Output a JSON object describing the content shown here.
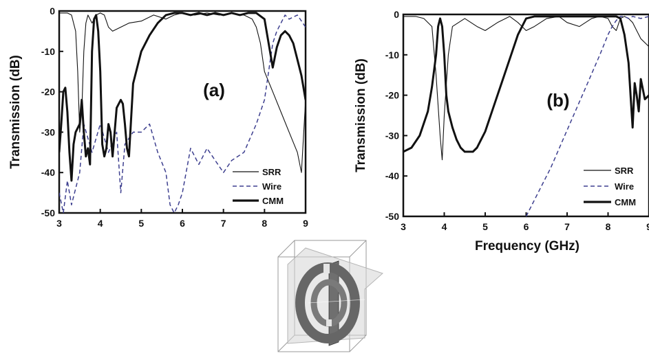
{
  "chart_data": [
    {
      "type": "line",
      "panel_label": "(a)",
      "xlabel": "",
      "ylabel": "Transmission (dB)",
      "xlim": [
        3,
        9
      ],
      "ylim": [
        -50,
        0
      ],
      "xticks": [
        "3",
        "4",
        "5",
        "6",
        "7",
        "8",
        "9"
      ],
      "yticks": [
        "0",
        "-10",
        "-20",
        "-30",
        "-40",
        "-50"
      ],
      "legend_position": "bottom-right",
      "series": [
        {
          "name": "SRR",
          "style": "thin-solid",
          "color": "#111111",
          "x": [
            3.0,
            3.2,
            3.3,
            3.4,
            3.45,
            3.5,
            3.55,
            3.6,
            3.65,
            3.7,
            3.8,
            3.9,
            4.0,
            4.1,
            4.2,
            4.3,
            4.5,
            4.7,
            5.0,
            5.3,
            5.6,
            5.8,
            6.0,
            6.3,
            6.6,
            6.9,
            7.2,
            7.5,
            7.7,
            7.8,
            7.9,
            8.0,
            8.2,
            8.4,
            8.6,
            8.8,
            8.9,
            9.0
          ],
          "y": [
            -0.5,
            -0.5,
            -1,
            -5,
            -15,
            -30,
            -25,
            -10,
            -3,
            -1,
            -3,
            -1,
            -0.5,
            -1,
            -4,
            -5,
            -4,
            -3,
            -2.5,
            -1,
            -2,
            -1,
            -0.5,
            -1,
            -0.5,
            -1,
            -0.5,
            -1,
            -2,
            -4,
            -8,
            -15,
            -20,
            -25,
            -30,
            -35,
            -40,
            -22
          ]
        },
        {
          "name": "Wire",
          "style": "dashed",
          "color": "#3d3f8f",
          "x": [
            3.0,
            3.1,
            3.2,
            3.3,
            3.5,
            3.6,
            3.8,
            4.0,
            4.2,
            4.4,
            4.5,
            4.6,
            4.8,
            5.0,
            5.2,
            5.4,
            5.6,
            5.7,
            5.8,
            5.9,
            6.0,
            6.2,
            6.4,
            6.6,
            6.8,
            7.0,
            7.2,
            7.5,
            7.8,
            8.0,
            8.1,
            8.2,
            8.3,
            8.4,
            8.5,
            8.6,
            8.8,
            9.0
          ],
          "y": [
            -45,
            -50,
            -42,
            -48,
            -40,
            -28,
            -35,
            -28,
            -35,
            -30,
            -45,
            -33,
            -30,
            -30,
            -28,
            -35,
            -40,
            -48,
            -50,
            -48,
            -45,
            -34,
            -38,
            -34,
            -37,
            -40,
            -37,
            -35,
            -28,
            -22,
            -15,
            -8,
            -5,
            -3,
            -1,
            -2,
            -1,
            -4
          ]
        },
        {
          "name": "CMM",
          "style": "thick-solid",
          "color": "#111111",
          "x": [
            3.0,
            3.05,
            3.1,
            3.15,
            3.2,
            3.25,
            3.3,
            3.35,
            3.4,
            3.5,
            3.55,
            3.6,
            3.65,
            3.7,
            3.75,
            3.8,
            3.85,
            3.9,
            3.95,
            4.0,
            4.05,
            4.1,
            4.15,
            4.2,
            4.25,
            4.3,
            4.4,
            4.5,
            4.55,
            4.6,
            4.65,
            4.7,
            4.8,
            5.0,
            5.2,
            5.4,
            5.6,
            5.8,
            6.0,
            6.2,
            6.4,
            6.6,
            6.8,
            7.0,
            7.2,
            7.4,
            7.6,
            7.8,
            8.0,
            8.1,
            8.2,
            8.3,
            8.4,
            8.5,
            8.6,
            8.7,
            8.8,
            8.9,
            9.0
          ],
          "y": [
            -35,
            -28,
            -20,
            -19,
            -25,
            -35,
            -42,
            -33,
            -30,
            -28,
            -22,
            -30,
            -36,
            -34,
            -38,
            -10,
            -2,
            -1,
            -5,
            -15,
            -33,
            -36,
            -34,
            -28,
            -30,
            -36,
            -24,
            -22,
            -23,
            -28,
            -34,
            -36,
            -18,
            -10,
            -6,
            -3,
            -1,
            -0.5,
            -0.5,
            -1,
            -0.5,
            -1,
            -0.5,
            -1,
            -0.5,
            -1,
            -0.5,
            -0.5,
            -2,
            -8,
            -14,
            -9,
            -6,
            -5,
            -6,
            -8,
            -12,
            -16,
            -22
          ]
        }
      ]
    },
    {
      "type": "line",
      "panel_label": "(b)",
      "xlabel": "Frequency (GHz)",
      "ylabel": "Transmission (dB)",
      "xlim": [
        3,
        9
      ],
      "ylim": [
        -50,
        0
      ],
      "xticks": [
        "3",
        "4",
        "5",
        "6",
        "7",
        "8",
        "9"
      ],
      "yticks": [
        "0",
        "-10",
        "-20",
        "-30",
        "-40",
        "-50"
      ],
      "legend_position": "bottom-right",
      "series": [
        {
          "name": "SRR",
          "style": "thin-solid",
          "color": "#111111",
          "x": [
            3.0,
            3.3,
            3.5,
            3.7,
            3.8,
            3.9,
            3.95,
            4.0,
            4.1,
            4.2,
            4.5,
            4.8,
            5.0,
            5.3,
            5.6,
            5.8,
            6.0,
            6.2,
            6.5,
            6.8,
            7.0,
            7.3,
            7.6,
            7.8,
            8.0,
            8.1,
            8.2,
            8.3,
            8.4,
            8.5,
            8.6,
            8.7,
            8.8,
            9.0
          ],
          "y": [
            -0.5,
            -0.5,
            -1,
            -3,
            -15,
            -30,
            -36,
            -25,
            -10,
            -3,
            -1,
            -3,
            -4,
            -2,
            -0.5,
            -2,
            -4,
            -3,
            -1,
            -0.5,
            -2,
            -3,
            -1,
            -0.5,
            -1,
            -3,
            -4,
            -1,
            -0.5,
            -1,
            -2,
            -4,
            -6,
            -8
          ]
        },
        {
          "name": "Wire",
          "style": "dashed",
          "color": "#3d3f8f",
          "x": [
            6.0,
            6.3,
            6.6,
            6.9,
            7.2,
            7.5,
            7.8,
            8.0,
            8.1,
            8.2,
            8.3,
            8.4,
            8.5,
            8.6,
            8.8,
            9.0
          ],
          "y": [
            -50,
            -44,
            -38,
            -31,
            -24,
            -17,
            -10,
            -5,
            -3,
            -1.5,
            -0.5,
            -0.5,
            -1,
            -0.5,
            -1,
            -0.5
          ]
        },
        {
          "name": "CMM",
          "style": "thick-solid",
          "color": "#111111",
          "x": [
            3.0,
            3.2,
            3.4,
            3.6,
            3.7,
            3.8,
            3.85,
            3.9,
            3.95,
            4.0,
            4.05,
            4.1,
            4.2,
            4.3,
            4.4,
            4.5,
            4.6,
            4.7,
            4.8,
            4.9,
            5.0,
            5.2,
            5.4,
            5.6,
            5.8,
            6.0,
            6.2,
            6.5,
            6.8,
            7.0,
            7.3,
            7.6,
            7.8,
            8.0,
            8.2,
            8.3,
            8.4,
            8.5,
            8.55,
            8.6,
            8.65,
            8.7,
            8.75,
            8.8,
            8.9,
            9.0
          ],
          "y": [
            -34,
            -33,
            -30,
            -24,
            -18,
            -10,
            -3,
            -1,
            -3,
            -10,
            -20,
            -24,
            -28,
            -31,
            -33,
            -34,
            -34,
            -34,
            -33,
            -31,
            -29,
            -23,
            -17,
            -11,
            -5,
            -1,
            -0.5,
            -0.5,
            -0.5,
            -0.5,
            -0.5,
            -0.5,
            -0.5,
            -0.5,
            -0.5,
            -1,
            -5,
            -12,
            -20,
            -28,
            -17,
            -20,
            -24,
            -16,
            -21,
            -20
          ]
        }
      ]
    }
  ]
}
